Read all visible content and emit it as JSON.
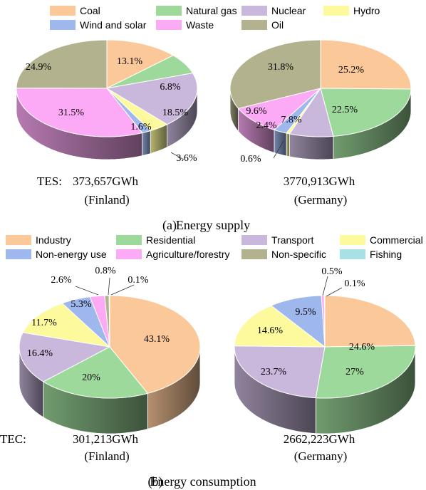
{
  "chart_data": [
    {
      "type": "pie",
      "panel": "a",
      "caption_tag": "(a)",
      "caption": "Energy supply",
      "legend": [
        "Coal",
        "Natural gas",
        "Nuclear",
        "Hydro",
        "Wind and solar",
        "Waste",
        "Oil"
      ],
      "colors": [
        "#FBC89A",
        "#9DD99A",
        "#C9B8DC",
        "#FCFA9C",
        "#9EB7EC",
        "#FDAAF6",
        "#B2B28E"
      ],
      "total_label": "TES:",
      "pies": [
        {
          "total": "373,657GWh",
          "country": "(Finland)",
          "categories": [
            "Coal",
            "Natural gas",
            "Nuclear",
            "Hydro",
            "Wind and solar",
            "Waste",
            "Oil"
          ],
          "values": [
            13.1,
            6.8,
            18.5,
            3.6,
            1.6,
            31.5,
            24.9
          ],
          "labels": [
            "13.1%",
            "6.8%",
            "18.5%",
            "3.6%",
            "1.6%",
            "31.5%",
            "24.9%"
          ]
        },
        {
          "total": "3770,913GWh",
          "country": "(Germany)",
          "categories": [
            "Coal",
            "Natural gas",
            "Nuclear",
            "Hydro",
            "Wind and solar",
            "Waste",
            "Oil"
          ],
          "values": [
            25.2,
            22.5,
            7.8,
            0.6,
            2.4,
            9.6,
            31.8
          ],
          "labels": [
            "25.2%",
            "22.5%",
            "7.8%",
            "0.6%",
            "2.4%",
            "9.6%",
            "31.8%"
          ]
        }
      ]
    },
    {
      "type": "pie",
      "panel": "b",
      "caption_tag": "(b)",
      "caption": "Energy consumption",
      "legend": [
        "Industry",
        "Residential",
        "Transport",
        "Commercial",
        "Non-energy use",
        "Agriculture/forestry",
        "Non-specific",
        "Fishing"
      ],
      "colors": [
        "#FBC89A",
        "#9DD99A",
        "#C9B8DC",
        "#FCFA9C",
        "#9EB7EC",
        "#FDAAF6",
        "#B2B28E",
        "#A8E0E6"
      ],
      "total_label": "TEC:",
      "pies": [
        {
          "total": "301,213GWh",
          "country": "(Finland)",
          "categories": [
            "Industry",
            "Residential",
            "Transport",
            "Commercial",
            "Non-energy use",
            "Agriculture/forestry",
            "Non-specific",
            "Fishing"
          ],
          "values": [
            43.1,
            20,
            16.4,
            11.7,
            5.3,
            2.6,
            0.8,
            0.1
          ],
          "labels": [
            "43.1%",
            "20%",
            "16.4%",
            "11.7%",
            "5.3%",
            "2.6%",
            "0.8%",
            "0.1%"
          ]
        },
        {
          "total": "2662,223GWh",
          "country": "(Germany)",
          "categories": [
            "Industry",
            "Residential",
            "Transport",
            "Commercial",
            "Non-energy use",
            "Agriculture/forestry",
            "Non-specific",
            "Fishing"
          ],
          "values": [
            24.6,
            27,
            23.7,
            14.6,
            9.5,
            0.5,
            0,
            0.1
          ],
          "labels": [
            "24.6%",
            "27%",
            "23.7%",
            "14.6%",
            "9.5%",
            "0.5%",
            "",
            "0.1%"
          ]
        }
      ]
    }
  ]
}
